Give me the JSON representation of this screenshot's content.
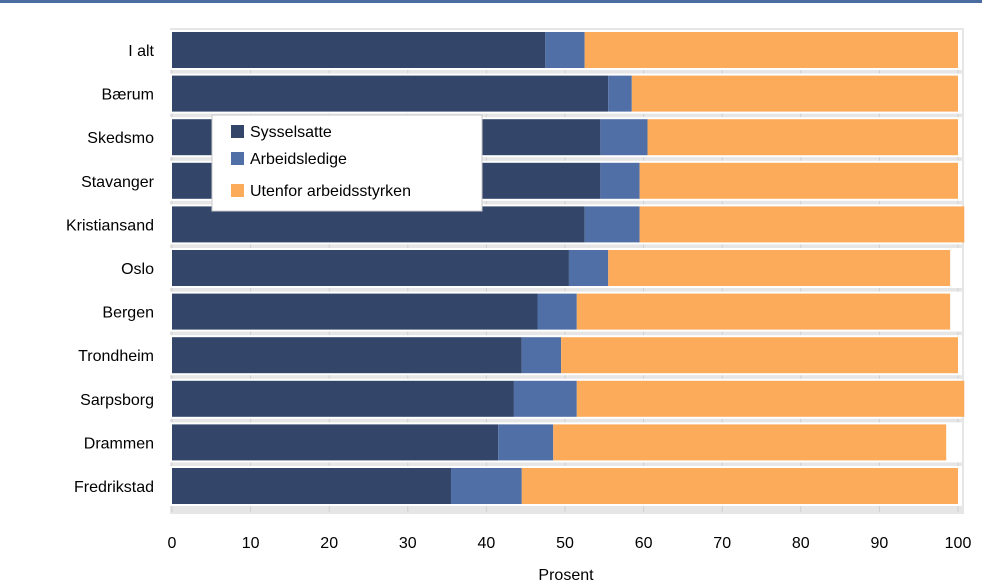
{
  "colors": {
    "series": [
      "#33466a",
      "#4f6fa6",
      "#fcab5a"
    ],
    "grid": "#d0d0d0",
    "rule": "#4a6ca0"
  },
  "chart_data": {
    "type": "bar",
    "orientation": "horizontal",
    "stacked": true,
    "categories": [
      "I alt",
      "Bærum",
      "Skedsmo",
      "Stavanger",
      "Kristiansand",
      "Oslo",
      "Bergen",
      "Trondheim",
      "Sarpsborg",
      "Drammen",
      "Fredrikstad"
    ],
    "series": [
      {
        "name": "Sysselsatte",
        "values": [
          47.5,
          55.5,
          54.5,
          54.5,
          52.5,
          50.5,
          46.5,
          44.5,
          43.5,
          41.5,
          35.5
        ]
      },
      {
        "name": "Arbeidsledige",
        "values": [
          5,
          3,
          6,
          5,
          7,
          5,
          5,
          5,
          8,
          7,
          9
        ]
      },
      {
        "name": "Utenfor arbeidsstyrken",
        "values": [
          47.5,
          41.5,
          39.5,
          40.5,
          41.3,
          43.5,
          47.5,
          50.5,
          49.3,
          50,
          55.5
        ]
      }
    ],
    "title": "",
    "xlabel": "Prosent",
    "ylabel": "",
    "xlim": [
      0,
      100
    ],
    "xticks": [
      "0",
      "10",
      "20",
      "30",
      "40",
      "50",
      "60",
      "70",
      "80",
      "90",
      "100"
    ],
    "grid": true,
    "legend": "upper-left"
  }
}
